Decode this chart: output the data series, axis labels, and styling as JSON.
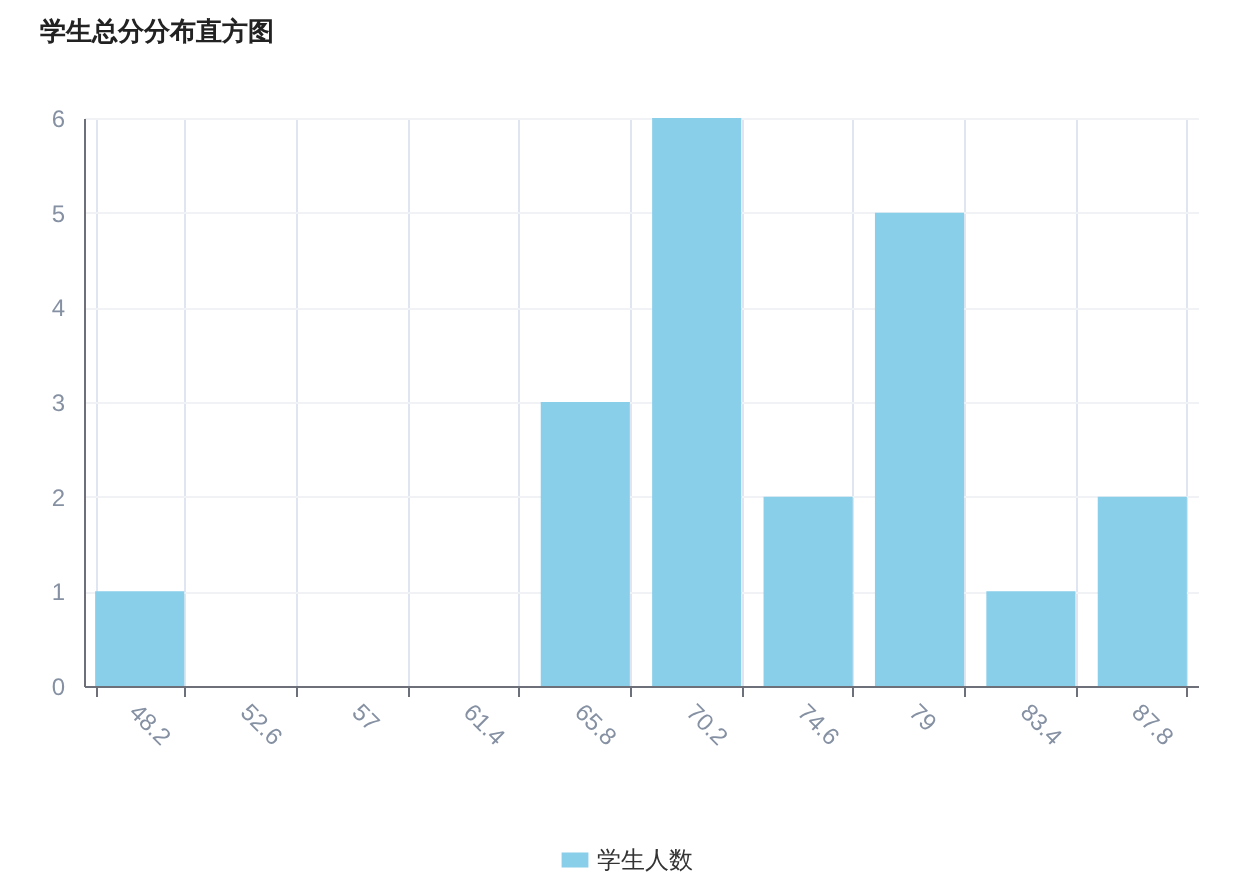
{
  "chart_data": {
    "type": "bar",
    "title": "学生总分分布直方图",
    "categories": [
      "48.2",
      "52.6",
      "57",
      "61.4",
      "65.8",
      "70.2",
      "74.6",
      "79",
      "83.4",
      "87.8"
    ],
    "series": [
      {
        "name": "学生人数",
        "color": "#89cfea",
        "values": [
          1,
          0,
          0,
          0,
          3,
          6,
          2,
          5,
          1,
          2
        ]
      }
    ],
    "ylim": [
      0,
      6
    ],
    "yticks": [
      0,
      1,
      2,
      3,
      4,
      5,
      6
    ],
    "grid": true,
    "legend": "bottom"
  }
}
